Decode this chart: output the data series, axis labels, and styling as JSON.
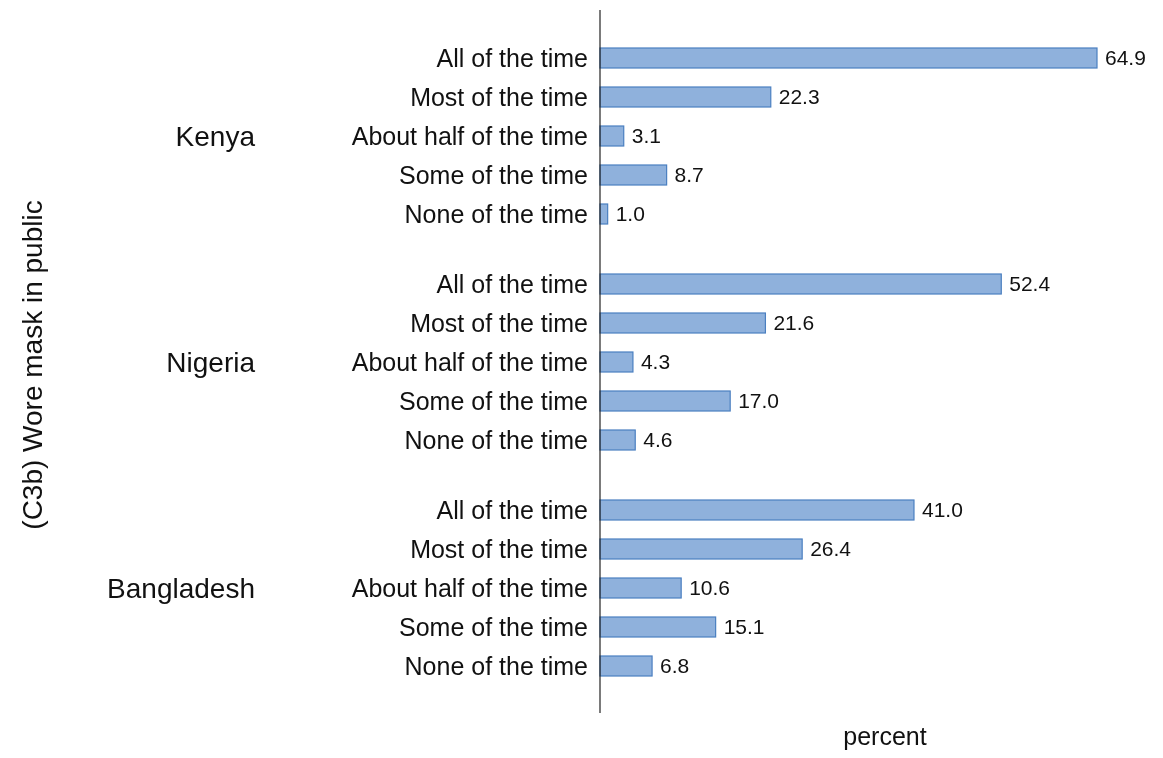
{
  "chart_data": {
    "type": "bar",
    "orientation": "horizontal",
    "xlabel": "percent",
    "categories": [
      "All of the time",
      "Most of the time",
      "About half of the time",
      "Some of the time",
      "None of the time",
      "All of the time",
      "Most of the time",
      "About half of the time",
      "Some of the time",
      "None of the time",
      "All of the time",
      "Most of the time",
      "About half of the time",
      "Some of the time",
      "None of the time"
    ],
    "values": [
      64.9,
      22.3,
      3.1,
      8.7,
      1.0,
      52.4,
      21.6,
      4.3,
      17.0,
      4.6,
      41.0,
      26.4,
      10.6,
      15.1,
      6.8
    ],
    "color": "#8fb1dc",
    "value_labels": [
      "64.9",
      "22.3",
      "3.1",
      "8.7",
      "1.0",
      "52.4",
      "21.6",
      "4.3",
      "17.0",
      "4.6",
      "41.0",
      "26.4",
      "10.6",
      "15.1",
      "6.8"
    ],
    "annotations": [
      "(C3b) Wore mask in public",
      "Kenya",
      "Nigeria",
      "Bangladesh"
    ]
  }
}
